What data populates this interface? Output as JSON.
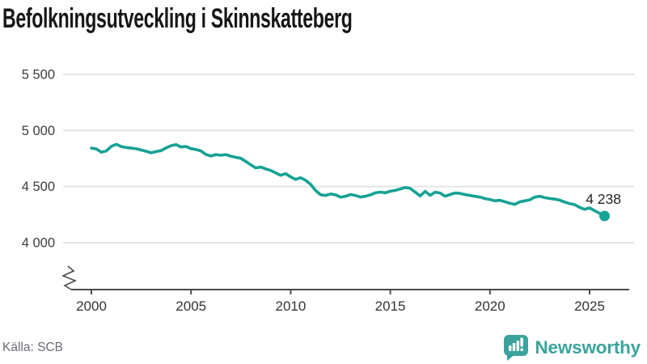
{
  "title": "Befolkningsutveckling i Skinnskatteberg",
  "source": "Källa: SCB",
  "brand": {
    "name": "Newsworthy",
    "color": "#3BA39D"
  },
  "chart_data": {
    "type": "line",
    "title": "Befolkningsutveckling i Skinnskatteberg",
    "xlabel": "",
    "ylabel": "",
    "xlim": [
      2000,
      2025.75
    ],
    "ylim": [
      4000,
      5500
    ],
    "grid": true,
    "legend": false,
    "y_axis_break": true,
    "line_color": "#16A294",
    "end_label": "4 238",
    "end_value": 4238,
    "x_ticks": [
      {
        "value": 2000,
        "label": "2000"
      },
      {
        "value": 2005,
        "label": "2005"
      },
      {
        "value": 2010,
        "label": "2010"
      },
      {
        "value": 2015,
        "label": "2015"
      },
      {
        "value": 2020,
        "label": "2020"
      },
      {
        "value": 2025,
        "label": "2025"
      }
    ],
    "y_ticks": [
      {
        "value": 5500,
        "label": "5 500"
      },
      {
        "value": 5000,
        "label": "5 000"
      },
      {
        "value": 4500,
        "label": "4 500"
      },
      {
        "value": 4000,
        "label": "4 000"
      }
    ],
    "series": [
      {
        "name": "Befolkning",
        "points": [
          [
            2000.0,
            4843
          ],
          [
            2000.25,
            4836
          ],
          [
            2000.5,
            4807
          ],
          [
            2000.75,
            4818
          ],
          [
            2001.0,
            4858
          ],
          [
            2001.25,
            4877
          ],
          [
            2001.5,
            4857
          ],
          [
            2001.75,
            4848
          ],
          [
            2002.0,
            4843
          ],
          [
            2002.25,
            4837
          ],
          [
            2002.5,
            4826
          ],
          [
            2002.75,
            4815
          ],
          [
            2003.0,
            4801
          ],
          [
            2003.25,
            4812
          ],
          [
            2003.5,
            4821
          ],
          [
            2003.75,
            4845
          ],
          [
            2004.0,
            4865
          ],
          [
            2004.25,
            4874
          ],
          [
            2004.5,
            4853
          ],
          [
            2004.75,
            4858
          ],
          [
            2005.0,
            4838
          ],
          [
            2005.25,
            4831
          ],
          [
            2005.5,
            4818
          ],
          [
            2005.75,
            4786
          ],
          [
            2006.0,
            4772
          ],
          [
            2006.25,
            4785
          ],
          [
            2006.5,
            4779
          ],
          [
            2006.75,
            4785
          ],
          [
            2007.0,
            4771
          ],
          [
            2007.25,
            4761
          ],
          [
            2007.5,
            4752
          ],
          [
            2007.75,
            4723
          ],
          [
            2008.0,
            4694
          ],
          [
            2008.25,
            4666
          ],
          [
            2008.5,
            4674
          ],
          [
            2008.75,
            4658
          ],
          [
            2009.0,
            4644
          ],
          [
            2009.25,
            4622
          ],
          [
            2009.5,
            4601
          ],
          [
            2009.75,
            4615
          ],
          [
            2010.0,
            4586
          ],
          [
            2010.25,
            4564
          ],
          [
            2010.5,
            4579
          ],
          [
            2010.75,
            4556
          ],
          [
            2011.0,
            4520
          ],
          [
            2011.25,
            4465
          ],
          [
            2011.5,
            4428
          ],
          [
            2011.75,
            4421
          ],
          [
            2012.0,
            4434
          ],
          [
            2012.25,
            4427
          ],
          [
            2012.5,
            4406
          ],
          [
            2012.75,
            4413
          ],
          [
            2013.0,
            4429
          ],
          [
            2013.25,
            4421
          ],
          [
            2013.5,
            4407
          ],
          [
            2013.75,
            4413
          ],
          [
            2014.0,
            4426
          ],
          [
            2014.25,
            4444
          ],
          [
            2014.5,
            4451
          ],
          [
            2014.75,
            4444
          ],
          [
            2015.0,
            4459
          ],
          [
            2015.25,
            4466
          ],
          [
            2015.5,
            4479
          ],
          [
            2015.75,
            4492
          ],
          [
            2016.0,
            4484
          ],
          [
            2016.25,
            4451
          ],
          [
            2016.5,
            4416
          ],
          [
            2016.75,
            4458
          ],
          [
            2017.0,
            4422
          ],
          [
            2017.25,
            4450
          ],
          [
            2017.5,
            4442
          ],
          [
            2017.75,
            4414
          ],
          [
            2018.0,
            4429
          ],
          [
            2018.25,
            4443
          ],
          [
            2018.5,
            4439
          ],
          [
            2018.75,
            4429
          ],
          [
            2019.0,
            4421
          ],
          [
            2019.25,
            4413
          ],
          [
            2019.5,
            4406
          ],
          [
            2019.75,
            4393
          ],
          [
            2020.0,
            4385
          ],
          [
            2020.25,
            4373
          ],
          [
            2020.5,
            4378
          ],
          [
            2020.75,
            4365
          ],
          [
            2021.0,
            4351
          ],
          [
            2021.25,
            4342
          ],
          [
            2021.5,
            4364
          ],
          [
            2021.75,
            4373
          ],
          [
            2022.0,
            4382
          ],
          [
            2022.25,
            4406
          ],
          [
            2022.5,
            4414
          ],
          [
            2022.75,
            4401
          ],
          [
            2023.0,
            4394
          ],
          [
            2023.25,
            4388
          ],
          [
            2023.5,
            4379
          ],
          [
            2023.75,
            4362
          ],
          [
            2024.0,
            4348
          ],
          [
            2024.25,
            4339
          ],
          [
            2024.5,
            4315
          ],
          [
            2024.75,
            4297
          ],
          [
            2025.0,
            4310
          ],
          [
            2025.25,
            4285
          ],
          [
            2025.5,
            4262
          ],
          [
            2025.75,
            4238
          ]
        ]
      }
    ]
  }
}
